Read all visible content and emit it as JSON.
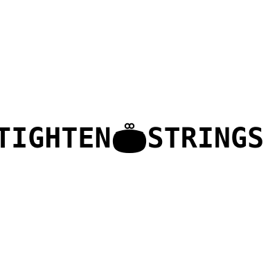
{
  "logo": {
    "word_left": "TIGHTEN",
    "word_right": "STRINGS",
    "icon": "coin-purse-icon",
    "text_color": "#000000",
    "background_color": "#ffffff"
  }
}
